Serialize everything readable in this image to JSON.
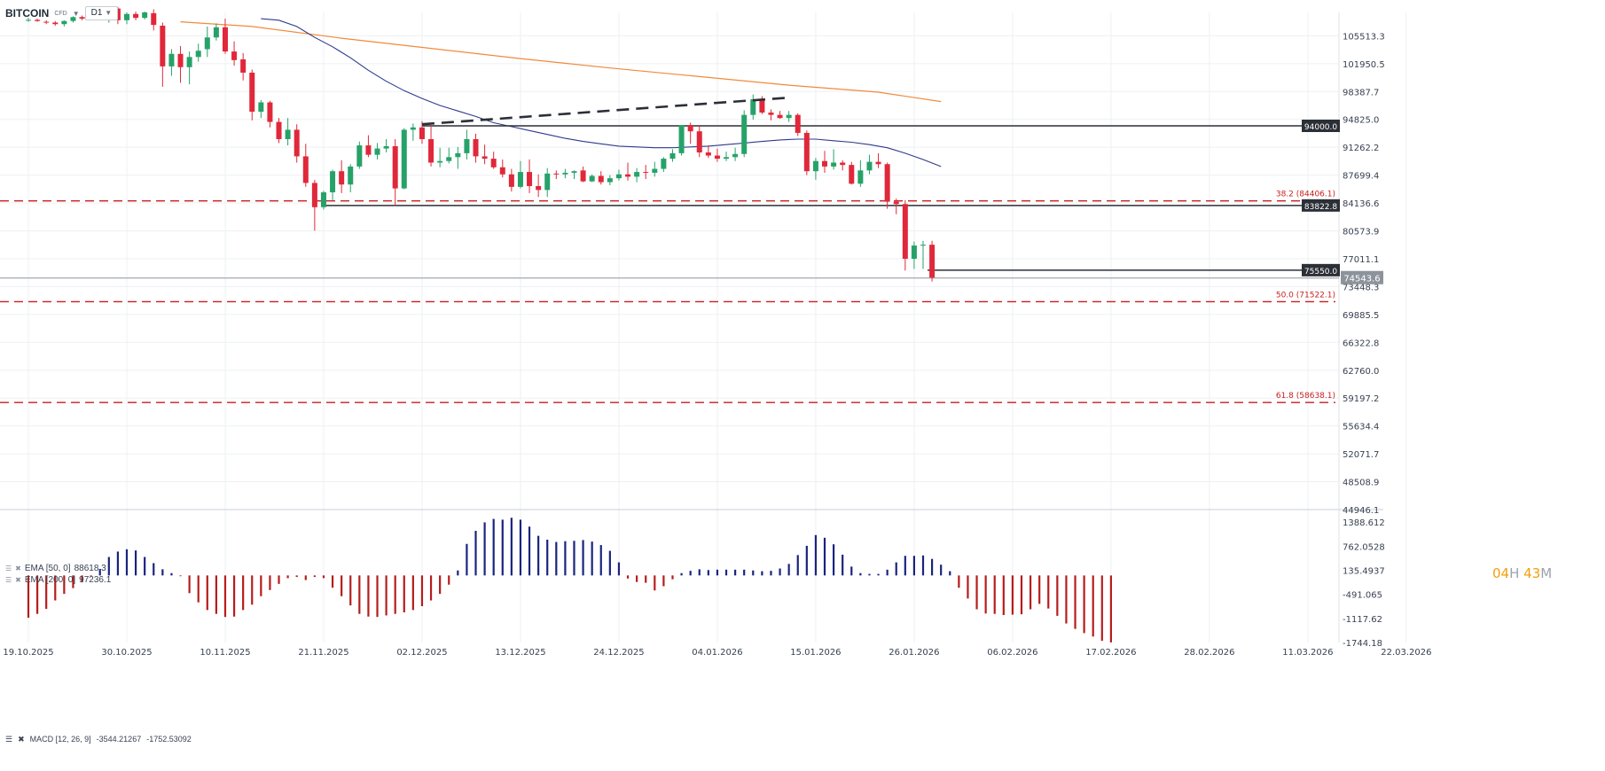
{
  "header": {
    "symbol": "BITCOIN",
    "instrument_type": "CFD",
    "timeframe": "D1"
  },
  "indicators": {
    "ema50": {
      "label": "EMA [50, 0]",
      "value": "88618.3",
      "color": "#2e3a8c"
    },
    "ema200": {
      "label": "EMA [200, 0]",
      "value": "97236.1",
      "color": "#f08a3c"
    },
    "macd": {
      "label": "MACD [12, 26, 9]",
      "value1": "-3544.21267",
      "value2": "-1752.53092"
    }
  },
  "timer": {
    "hours": "04",
    "hours_unit": "H",
    "minutes": "43",
    "minutes_unit": "M"
  },
  "colors": {
    "up": "#26a269",
    "down": "#e0283a",
    "hline": "#2b2f36",
    "fib": "#c81e1e",
    "price_tag": "#2b2f36",
    "macd_pos": "#1a237e",
    "macd_neg": "#b71c1c",
    "macd_line": "#2e3a8c",
    "signal_line": "#e0283a"
  },
  "chart_data": [
    {
      "type": "candlestick",
      "title": "BITCOIN CFD D1",
      "y_ticks": [
        "105513.3",
        "101950.5",
        "98387.7",
        "94825.0",
        "91262.2",
        "87699.4",
        "84136.6",
        "80573.9",
        "77011.1",
        "73448.3",
        "69885.5",
        "66322.8",
        "62760.0",
        "59197.2",
        "55634.4",
        "52071.7",
        "48508.9",
        "44946.1"
      ],
      "ylim": [
        44946.1,
        108500
      ],
      "x_tick_labels": [
        "19.10.2025",
        "30.10.2025",
        "10.11.2025",
        "21.11.2025",
        "02.12.2025",
        "13.12.2025",
        "24.12.2025",
        "04.01.2026",
        "15.01.2026",
        "26.01.2026",
        "06.02.2026",
        "17.02.2026",
        "28.02.2026",
        "11.03.2026",
        "22.03.2026"
      ],
      "x_tick_days": [
        0,
        11,
        22,
        33,
        44,
        55,
        66,
        77,
        88,
        99,
        110,
        121,
        132,
        143,
        154
      ],
      "candle_start_day": 0,
      "candles_ohlc": [
        [
          107500,
          107800,
          107300,
          107550
        ],
        [
          107550,
          107700,
          107300,
          107400
        ],
        [
          107300,
          107500,
          107000,
          107200
        ],
        [
          107200,
          107400,
          106800,
          107000
        ],
        [
          107000,
          107500,
          106700,
          107400
        ],
        [
          107400,
          108000,
          107200,
          107900
        ],
        [
          107900,
          108100,
          107500,
          107700
        ],
        [
          107700,
          108200,
          107500,
          108000
        ],
        [
          108000,
          108400,
          107500,
          107600
        ],
        [
          107600,
          107900,
          107200,
          107700
        ],
        [
          109000,
          109200,
          107000,
          107500
        ],
        [
          107500,
          108500,
          107000,
          108300
        ],
        [
          108300,
          108600,
          107500,
          107800
        ],
        [
          107800,
          108600,
          107600,
          108500
        ],
        [
          108400,
          108900,
          106200,
          106900
        ],
        [
          106800,
          107200,
          99000,
          101600
        ],
        [
          101600,
          103800,
          100400,
          103200
        ],
        [
          103200,
          104200,
          99500,
          101500
        ],
        [
          101500,
          103500,
          99300,
          102800
        ],
        [
          102800,
          104500,
          102200,
          103600
        ],
        [
          103800,
          106700,
          102800,
          105300
        ],
        [
          105300,
          107100,
          104900,
          106600
        ],
        [
          106600,
          107700,
          103200,
          103500
        ],
        [
          103500,
          104800,
          101700,
          102400
        ],
        [
          102500,
          103300,
          99800,
          100800
        ],
        [
          100800,
          101200,
          94700,
          95800
        ],
        [
          95800,
          97300,
          95000,
          97000
        ],
        [
          97000,
          97200,
          93800,
          94500
        ],
        [
          94500,
          95000,
          91800,
          92300
        ],
        [
          92300,
          95000,
          91500,
          93500
        ],
        [
          93500,
          94200,
          89300,
          90100
        ],
        [
          90100,
          91700,
          86200,
          86700
        ],
        [
          86700,
          87100,
          80600,
          83600
        ],
        [
          83600,
          85700,
          83300,
          85500
        ],
        [
          85500,
          88400,
          84500,
          88200
        ],
        [
          88200,
          89600,
          85400,
          86500
        ],
        [
          86500,
          89100,
          85500,
          88800
        ],
        [
          88800,
          92000,
          88500,
          91500
        ],
        [
          91500,
          92800,
          90000,
          90300
        ],
        [
          90300,
          91800,
          89700,
          91100
        ],
        [
          91100,
          92300,
          90600,
          91400
        ],
        [
          91400,
          92300,
          83800,
          86000
        ],
        [
          86000,
          93700,
          85900,
          93500
        ],
        [
          93500,
          94300,
          92100,
          93800
        ],
        [
          93800,
          94600,
          91700,
          92300
        ],
        [
          92300,
          94000,
          88800,
          89300
        ],
        [
          89300,
          91200,
          88700,
          89500
        ],
        [
          89500,
          91200,
          89200,
          90000
        ],
        [
          90000,
          91300,
          88500,
          90500
        ],
        [
          90500,
          93500,
          89700,
          92300
        ],
        [
          92300,
          93000,
          89300,
          90100
        ],
        [
          90100,
          91600,
          89100,
          89800
        ],
        [
          89800,
          90700,
          88500,
          88700
        ],
        [
          88700,
          89700,
          87400,
          87800
        ],
        [
          87800,
          88500,
          85600,
          86200
        ],
        [
          86200,
          89500,
          86000,
          88100
        ],
        [
          88100,
          89700,
          85400,
          86300
        ],
        [
          86300,
          87800,
          84900,
          85800
        ],
        [
          85800,
          88600,
          84900,
          87900
        ],
        [
          87900,
          88300,
          87200,
          87800
        ],
        [
          87800,
          88500,
          87300,
          88000
        ],
        [
          88000,
          88300,
          87200,
          88200
        ],
        [
          88300,
          88800,
          86800,
          86900
        ],
        [
          86900,
          87800,
          86800,
          87600
        ],
        [
          87600,
          88200,
          86500,
          86800
        ],
        [
          86800,
          87700,
          86400,
          87300
        ],
        [
          87300,
          88400,
          87000,
          87800
        ],
        [
          87800,
          89300,
          87000,
          87500
        ],
        [
          87500,
          88600,
          86800,
          88100
        ],
        [
          88100,
          89000,
          87200,
          88000
        ],
        [
          88000,
          89400,
          87500,
          88500
        ],
        [
          88500,
          90000,
          88100,
          89800
        ],
        [
          89800,
          91000,
          89400,
          90500
        ],
        [
          90500,
          94100,
          90200,
          94100
        ],
        [
          94100,
          94400,
          91700,
          93300
        ],
        [
          93300,
          94100,
          90000,
          90600
        ],
        [
          90600,
          91500,
          89900,
          90200
        ],
        [
          90200,
          91100,
          89400,
          89800
        ],
        [
          89800,
          90700,
          89500,
          90000
        ],
        [
          90000,
          91200,
          89500,
          90400
        ],
        [
          90400,
          96000,
          90000,
          95400
        ],
        [
          95400,
          98000,
          94800,
          97400
        ],
        [
          97400,
          97800,
          95500,
          95700
        ],
        [
          95700,
          96100,
          94700,
          95400
        ],
        [
          95400,
          95900,
          94900,
          95000
        ],
        [
          95000,
          95900,
          94500,
          95400
        ],
        [
          95400,
          95600,
          92700,
          93100
        ],
        [
          93100,
          93400,
          87700,
          88200
        ],
        [
          88200,
          89900,
          87100,
          89500
        ],
        [
          89500,
          90800,
          88000,
          88800
        ],
        [
          88800,
          91000,
          88400,
          89300
        ],
        [
          89300,
          89600,
          88300,
          89000
        ],
        [
          89000,
          89400,
          86500,
          86600
        ],
        [
          86600,
          89600,
          86200,
          88300
        ],
        [
          88300,
          90300,
          87800,
          89400
        ],
        [
          89400,
          90500,
          88600,
          89100
        ],
        [
          89100,
          89300,
          83400,
          84300
        ],
        [
          84300,
          84700,
          82700,
          84000
        ],
        [
          84000,
          84500,
          75500,
          77000
        ],
        [
          77000,
          79200,
          75700,
          78700
        ],
        [
          78700,
          79300,
          75700,
          78800
        ],
        [
          78800,
          79300,
          74100,
          74600
        ]
      ],
      "ema50": [
        [
          26,
          107700
        ],
        [
          28,
          107500
        ],
        [
          30,
          106700
        ],
        [
          32,
          105300
        ],
        [
          34,
          104100
        ],
        [
          36,
          102700
        ],
        [
          38,
          101100
        ],
        [
          40,
          99700
        ],
        [
          42,
          98500
        ],
        [
          44,
          97500
        ],
        [
          46,
          96600
        ],
        [
          48,
          95900
        ],
        [
          50,
          95200
        ],
        [
          52,
          94400
        ],
        [
          54,
          93900
        ],
        [
          56,
          93400
        ],
        [
          58,
          92900
        ],
        [
          60,
          92400
        ],
        [
          62,
          92000
        ],
        [
          64,
          91700
        ],
        [
          66,
          91400
        ],
        [
          68,
          91300
        ],
        [
          70,
          91200
        ],
        [
          72,
          91200
        ],
        [
          74,
          91300
        ],
        [
          76,
          91400
        ],
        [
          78,
          91600
        ],
        [
          80,
          91800
        ],
        [
          82,
          92000
        ],
        [
          84,
          92200
        ],
        [
          86,
          92300
        ],
        [
          88,
          92300
        ],
        [
          90,
          92100
        ],
        [
          92,
          91900
        ],
        [
          94,
          91600
        ],
        [
          96,
          91200
        ],
        [
          98,
          90500
        ],
        [
          100,
          89700
        ],
        [
          102,
          88800
        ]
      ],
      "ema200": [
        [
          17,
          107300
        ],
        [
          25,
          106700
        ],
        [
          35,
          105200
        ],
        [
          45,
          103900
        ],
        [
          55,
          102600
        ],
        [
          65,
          101400
        ],
        [
          75,
          100300
        ],
        [
          85,
          99200
        ],
        [
          95,
          98300
        ],
        [
          102,
          97100
        ]
      ],
      "horizontal_lines": [
        {
          "price": 94000.0,
          "label": "94000.0",
          "from_day": 44
        },
        {
          "price": 83822.8,
          "label": "83822.8",
          "from_day": 33
        },
        {
          "price": 75550.0,
          "label": "75550.0",
          "from_day": 100.5
        }
      ],
      "fib_levels": [
        {
          "price": 84406.1,
          "label": "38.2 (84406.1)"
        },
        {
          "price": 71522.1,
          "label": "50.0 (71522.1)"
        },
        {
          "price": 58638.1,
          "label": "61.8 (58638.1)"
        }
      ],
      "trendline": {
        "start": [
          44,
          94200
        ],
        "end": [
          85,
          97600
        ],
        "style": "dashed"
      },
      "current_price": {
        "price": 74543.6,
        "label": "74543.6"
      }
    },
    {
      "type": "macd",
      "title": "MACD [12, 26, 9]",
      "y_ticks": [
        "1388.612",
        "762.0528",
        "135.4937",
        "-491.065",
        "-1117.62",
        "-1744.18"
      ],
      "ylim": [
        -1744.18,
        1690
      ],
      "histogram_start_day": 0,
      "histogram": [
        -1100,
        -1000,
        -870,
        -650,
        -480,
        -330,
        -180,
        -20,
        170,
        480,
        620,
        680,
        650,
        480,
        320,
        160,
        60,
        -20,
        -460,
        -700,
        -900,
        -1000,
        -1080,
        -1070,
        -900,
        -760,
        -540,
        -380,
        -220,
        -70,
        -40,
        -120,
        -40,
        -70,
        -320,
        -540,
        -780,
        -1000,
        -1070,
        -1080,
        -1040,
        -1000,
        -960,
        -900,
        -800,
        -650,
        -480,
        -240,
        130,
        820,
        1160,
        1380,
        1470,
        1450,
        1500,
        1450,
        1270,
        1030,
        930,
        870,
        890,
        900,
        920,
        880,
        790,
        640,
        340,
        -80,
        -170,
        -190,
        -390,
        -280,
        -100,
        60,
        120,
        160,
        140,
        150,
        150,
        150,
        150,
        130,
        110,
        120,
        180,
        300,
        530,
        770,
        1050,
        980,
        810,
        540,
        230,
        60,
        40,
        40,
        150,
        340,
        510,
        510,
        520,
        430,
        280,
        110,
        -320,
        -600,
        -880,
        -990,
        -1000,
        -1030,
        -1020,
        -1010,
        -880,
        -740,
        -860,
        -1050,
        -1250,
        -1390,
        -1500,
        -1590,
        -1700,
        -1740
      ]
    }
  ]
}
